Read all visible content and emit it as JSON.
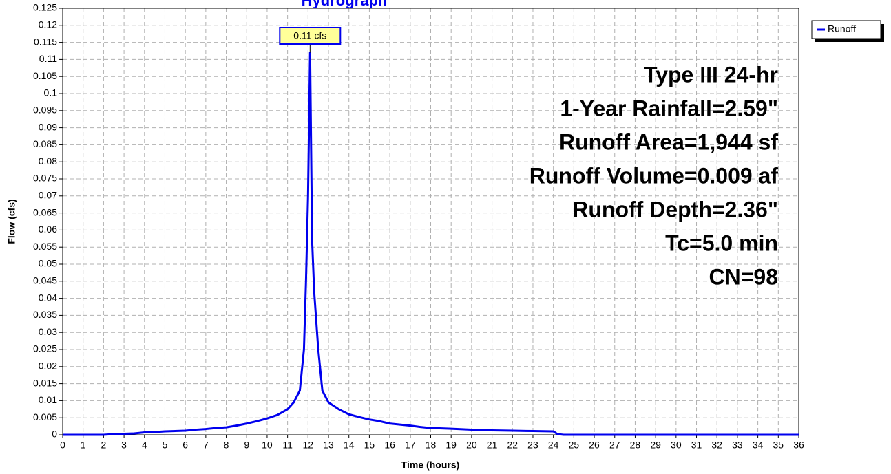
{
  "chart_data": {
    "type": "line",
    "title": "Hydrograph",
    "x_label": "Time (hours)",
    "y_label": "Flow (cfs)",
    "xlim": [
      0,
      36
    ],
    "xticks": [
      0,
      1,
      2,
      3,
      4,
      5,
      6,
      7,
      8,
      9,
      10,
      11,
      12,
      13,
      14,
      15,
      16,
      17,
      18,
      19,
      20,
      21,
      22,
      23,
      24,
      25,
      26,
      27,
      28,
      29,
      30,
      31,
      32,
      33,
      34,
      35,
      36
    ],
    "ylim": [
      0,
      0.125
    ],
    "yticks": [
      0,
      0.005,
      0.01,
      0.015,
      0.02,
      0.025,
      0.03,
      0.035,
      0.04,
      0.045,
      0.05,
      0.055,
      0.06,
      0.065,
      0.07,
      0.075,
      0.08,
      0.085,
      0.09,
      0.095,
      0.1,
      0.105,
      0.11,
      0.115,
      0.12,
      0.125
    ],
    "grid": true,
    "legend": "top-right",
    "series": [
      {
        "name": "Runoff",
        "color": "#0000ee",
        "x": [
          0,
          2,
          2.5,
          3,
          3.5,
          4,
          4.5,
          5,
          6,
          6.5,
          7,
          7.5,
          8,
          8.5,
          9,
          9.5,
          10,
          10.5,
          11,
          11.3,
          11.6,
          11.8,
          11.9,
          12.0,
          12.1,
          12.2,
          12.3,
          12.5,
          12.7,
          13,
          13.5,
          14,
          14.5,
          15,
          15.5,
          16,
          16.5,
          17,
          17.5,
          18,
          19,
          20,
          21,
          22,
          23,
          24,
          24.2,
          24.5,
          36
        ],
        "values": [
          0,
          0,
          0.0002,
          0.0003,
          0.0004,
          0.0007,
          0.0008,
          0.001,
          0.0012,
          0.0015,
          0.0017,
          0.002,
          0.0022,
          0.0027,
          0.0033,
          0.004,
          0.0048,
          0.0058,
          0.0075,
          0.0095,
          0.013,
          0.025,
          0.045,
          0.07,
          0.112,
          0.057,
          0.042,
          0.025,
          0.013,
          0.0095,
          0.0075,
          0.006,
          0.0052,
          0.0045,
          0.004,
          0.0033,
          0.003,
          0.0027,
          0.0023,
          0.002,
          0.0018,
          0.0015,
          0.0013,
          0.0012,
          0.0011,
          0.001,
          0.0002,
          0,
          0
        ]
      }
    ],
    "peak_label": "0.11 cfs",
    "annotations": [
      "Type III 24-hr",
      "1-Year Rainfall=2.59\"",
      "Runoff Area=1,944 sf",
      "Runoff Volume=0.009 af",
      "Runoff Depth=2.36\"",
      "Tc=5.0 min",
      "CN=98"
    ]
  }
}
